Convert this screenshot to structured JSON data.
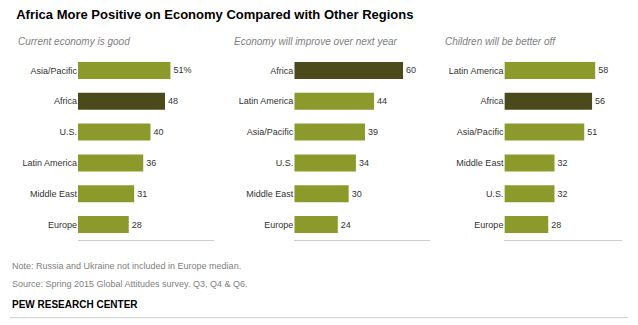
{
  "chart_data": [
    {
      "type": "bar",
      "orientation": "horizontal",
      "title": "Africa More Positive on Economy Compared with Other Regions",
      "subtitle": "Current economy is good",
      "categories": [
        "Asia/Pacific",
        "Africa",
        "U.S.",
        "Latin America",
        "Middle East",
        "Europe"
      ],
      "values": [
        51,
        48,
        40,
        36,
        31,
        28
      ],
      "value_labels": [
        "51%",
        "48",
        "40",
        "36",
        "31",
        "28"
      ],
      "data_labels": true,
      "colors": [
        "#8b9a2b",
        "#4a4a1a",
        "#8b9a2b",
        "#8b9a2b",
        "#8b9a2b",
        "#8b9a2b"
      ],
      "xlim": [
        0,
        75
      ],
      "tick_labels": "y",
      "grid": false,
      "annotations": [
        "Note: Russia and Ukraine not included in Europe median.",
        "Source: Spring 2015 Global Attitudes survey. Q3, Q4 & Q6.",
        "PEW RESEARCH CENTER"
      ]
    },
    {
      "type": "bar",
      "orientation": "horizontal",
      "subtitle": "Economy will improve over next year",
      "categories": [
        "Africa",
        "Latin America",
        "Asia/Pacific",
        "U.S.",
        "Middle East",
        "Europe"
      ],
      "values": [
        60,
        44,
        39,
        34,
        30,
        24
      ],
      "value_labels": [
        "60",
        "44",
        "39",
        "34",
        "30",
        "24"
      ],
      "data_labels": true,
      "colors": [
        "#4a4a1a",
        "#8b9a2b",
        "#8b9a2b",
        "#8b9a2b",
        "#8b9a2b",
        "#8b9a2b"
      ],
      "xlim": [
        0,
        75
      ],
      "tick_labels": "y",
      "grid": false
    },
    {
      "type": "bar",
      "orientation": "horizontal",
      "subtitle": "Children will be better off",
      "categories": [
        "Latin America",
        "Africa",
        "Asia/Pacific",
        "Middle East",
        "U.S.",
        "Europe"
      ],
      "values": [
        58,
        56,
        51,
        32,
        32,
        28
      ],
      "value_labels": [
        "58",
        "56",
        "51",
        "32",
        "32",
        "28"
      ],
      "data_labels": true,
      "colors": [
        "#8b9a2b",
        "#4a4a1a",
        "#8b9a2b",
        "#8b9a2b",
        "#8b9a2b",
        "#8b9a2b"
      ],
      "xlim": [
        0,
        75
      ],
      "tick_labels": "y",
      "grid": false
    }
  ]
}
